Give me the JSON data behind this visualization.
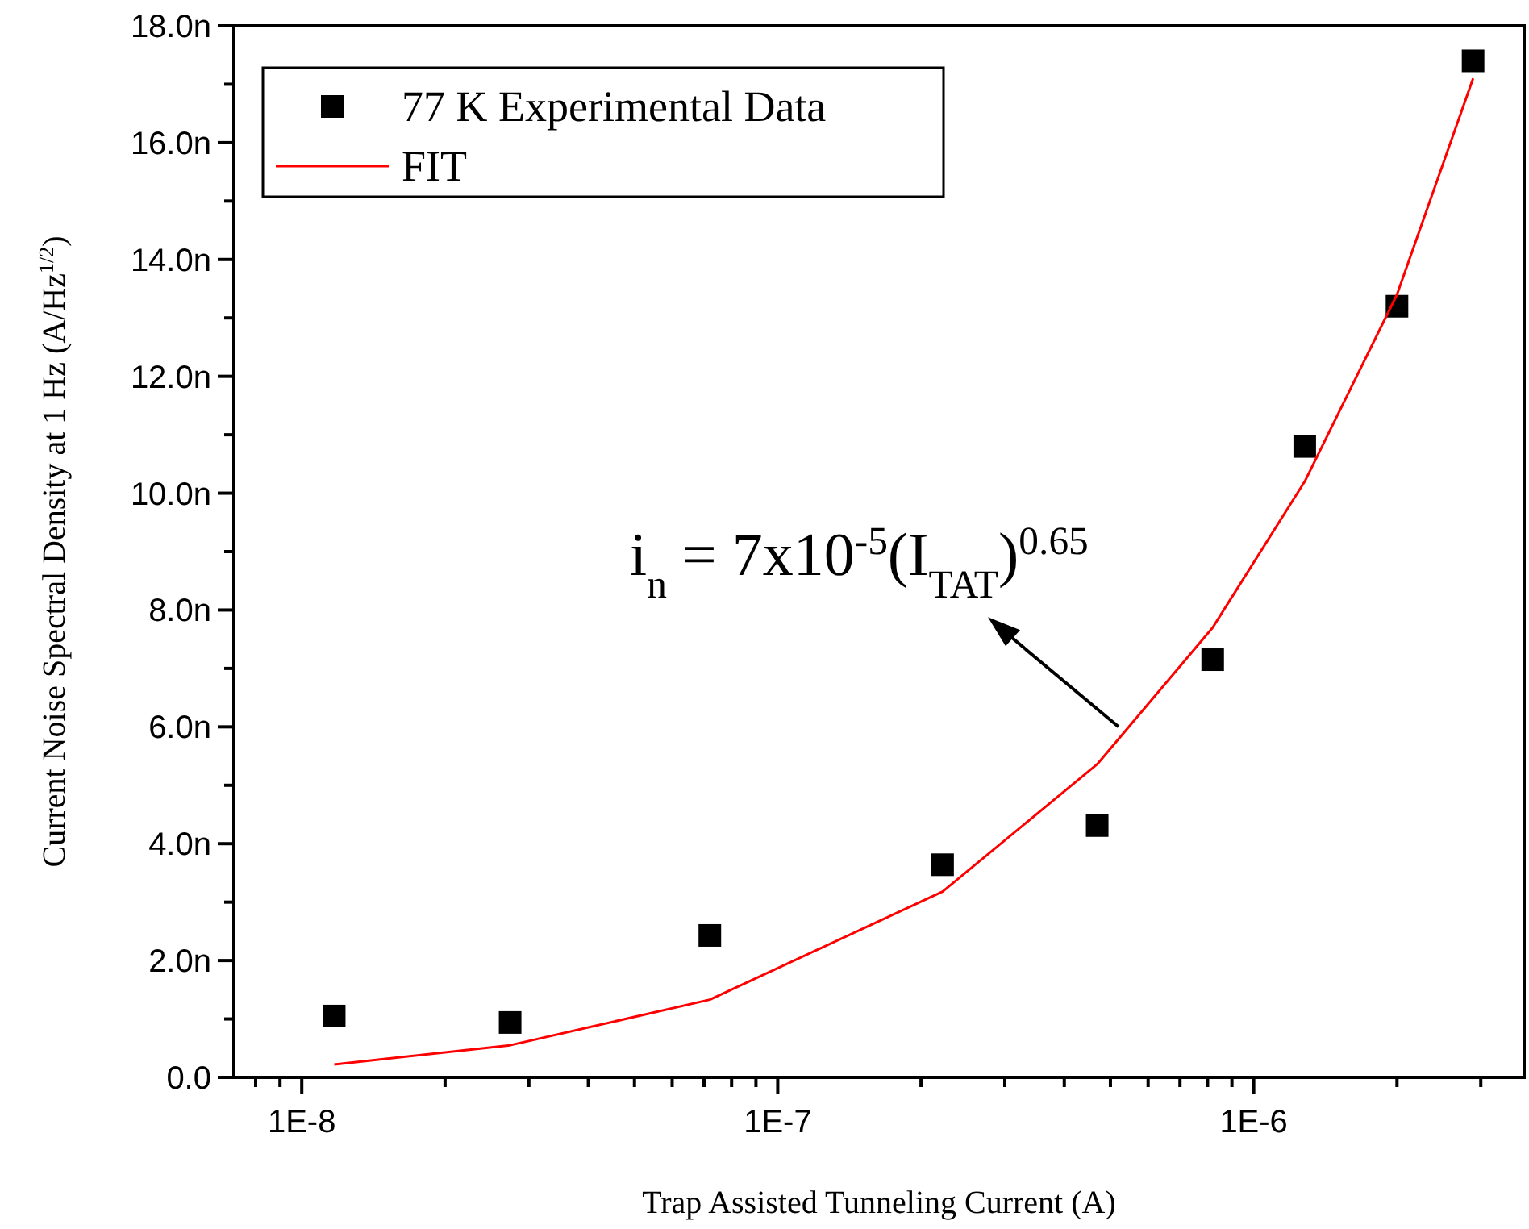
{
  "chart_data": {
    "type": "scatter",
    "xlabel": "Trap Assisted Tunneling Current (A)",
    "ylabel": "Current Noise Spectral Density at 1 Hz (A/Hz$^{1/2}$)",
    "log": "x",
    "legend": "top left",
    "grid": false,
    "xlim": [
      7.2e-09,
      3.7e-06
    ],
    "xticks": [
      {
        "value": 8e-09,
        "label": null
      },
      {
        "value": 9e-09,
        "label": null
      },
      {
        "value": 1e-08,
        "label": "1E-8"
      },
      {
        "value": 2e-08,
        "label": null
      },
      {
        "value": 3e-08,
        "label": null
      },
      {
        "value": 4e-08,
        "label": null
      },
      {
        "value": 5e-08,
        "label": null
      },
      {
        "value": 6e-08,
        "label": null
      },
      {
        "value": 7e-08,
        "label": null
      },
      {
        "value": 8e-08,
        "label": null
      },
      {
        "value": 9e-08,
        "label": null
      },
      {
        "value": 1e-07,
        "label": "1E-7"
      },
      {
        "value": 2e-07,
        "label": null
      },
      {
        "value": 3e-07,
        "label": null
      },
      {
        "value": 4e-07,
        "label": null
      },
      {
        "value": 5e-07,
        "label": null
      },
      {
        "value": 6e-07,
        "label": null
      },
      {
        "value": 7e-07,
        "label": null
      },
      {
        "value": 8e-07,
        "label": null
      },
      {
        "value": 9e-07,
        "label": null
      },
      {
        "value": 1e-06,
        "label": "1E-6"
      },
      {
        "value": 2e-06,
        "label": null
      },
      {
        "value": 3e-06,
        "label": null
      }
    ],
    "ylim": [
      0,
      18
    ],
    "yticks": [
      {
        "value": 0,
        "label": "0.0"
      },
      {
        "value": 1,
        "label": null
      },
      {
        "value": 2,
        "label": "2.0n"
      },
      {
        "value": 3,
        "label": null
      },
      {
        "value": 4,
        "label": "4.0n"
      },
      {
        "value": 5,
        "label": null
      },
      {
        "value": 6,
        "label": "6.0n"
      },
      {
        "value": 7,
        "label": null
      },
      {
        "value": 8,
        "label": "8.0n"
      },
      {
        "value": 9,
        "label": null
      },
      {
        "value": 10,
        "label": "10.0n"
      },
      {
        "value": 11,
        "label": null
      },
      {
        "value": 12,
        "label": "12.0n"
      },
      {
        "value": 13,
        "label": null
      },
      {
        "value": 14,
        "label": "14.0n"
      },
      {
        "value": 15,
        "label": null
      },
      {
        "value": 16,
        "label": "16.0n"
      },
      {
        "value": 17,
        "label": null
      },
      {
        "value": 18,
        "label": "18.0n"
      }
    ],
    "annotations": [
      {
        "text": "i$_{n}$ = 7x10$^{-5}$(I$_{TAT}$)$^{0.65}$",
        "x": 5.2e-07,
        "y": 6.0
      }
    ],
    "series": [
      {
        "name": "77 K Experimental Data",
        "marker": "square",
        "color": "#000000",
        "x": [
          1.17e-08,
          2.74e-08,
          7.2e-08,
          2.22e-07,
          4.69e-07,
          8.2e-07,
          1.28e-06,
          2e-06,
          2.89e-06
        ],
        "values": [
          1.05,
          0.94,
          2.43,
          3.64,
          4.31,
          7.15,
          10.8,
          13.2,
          17.4
        ]
      },
      {
        "name": "FIT",
        "type": "line",
        "color": "#ff0000",
        "x": [
          1.17e-08,
          2.74e-08,
          7.2e-08,
          2.22e-07,
          4.69e-07,
          8.2e-07,
          1.28e-06,
          2e-06,
          2.89e-06
        ],
        "values": [
          0.22,
          0.55,
          1.33,
          3.18,
          5.36,
          7.7,
          10.2,
          13.4,
          17.1
        ]
      }
    ]
  }
}
